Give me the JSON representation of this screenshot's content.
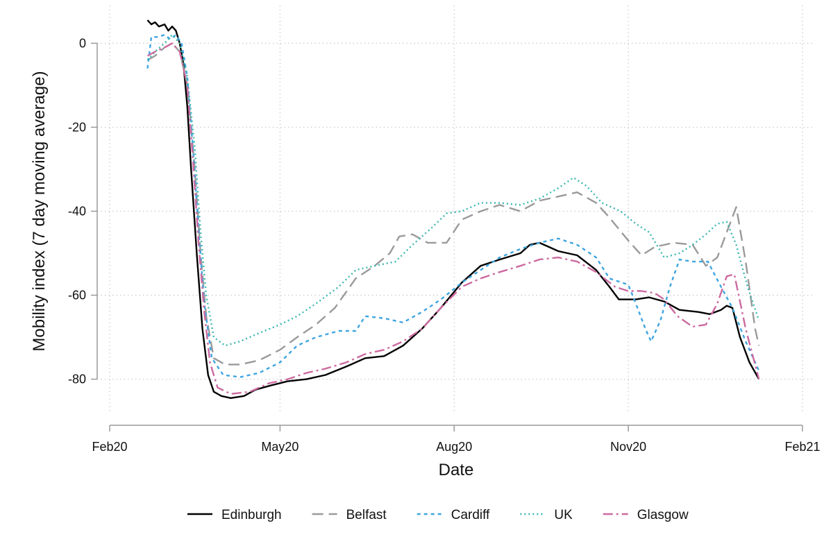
{
  "chart_data": {
    "type": "line",
    "title": "",
    "xlabel": "Date",
    "ylabel": "Mobility index (7 day moving average)",
    "x_ticks": [
      {
        "date": "2020-02-01",
        "label": "Feb20"
      },
      {
        "date": "2020-05-01",
        "label": "May20"
      },
      {
        "date": "2020-08-01",
        "label": "Aug20"
      },
      {
        "date": "2020-11-01",
        "label": "Nov20"
      },
      {
        "date": "2021-02-01",
        "label": "Feb21"
      }
    ],
    "xlim": [
      "2020-02-01",
      "2021-02-01"
    ],
    "y_ticks": [
      0,
      -20,
      -40,
      -60,
      -80
    ],
    "ylim": [
      -88,
      7
    ],
    "grid": "dotted",
    "legend_position": "bottom",
    "series": [
      {
        "name": "Edinburgh",
        "color": "#000000",
        "dash": "solid",
        "points": [
          [
            "2020-02-21",
            5.5
          ],
          [
            "2020-02-23",
            4.5
          ],
          [
            "2020-02-25",
            5
          ],
          [
            "2020-02-27",
            4
          ],
          [
            "2020-03-01",
            4.5
          ],
          [
            "2020-03-03",
            3
          ],
          [
            "2020-03-05",
            4
          ],
          [
            "2020-03-07",
            3
          ],
          [
            "2020-03-09",
            0
          ],
          [
            "2020-03-11",
            -5
          ],
          [
            "2020-03-13",
            -15
          ],
          [
            "2020-03-15",
            -30
          ],
          [
            "2020-03-18",
            -50
          ],
          [
            "2020-03-21",
            -68
          ],
          [
            "2020-03-24",
            -79
          ],
          [
            "2020-03-27",
            -83
          ],
          [
            "2020-03-31",
            -84
          ],
          [
            "2020-04-05",
            -84.5
          ],
          [
            "2020-04-12",
            -84
          ],
          [
            "2020-04-18",
            -82.5
          ],
          [
            "2020-04-26",
            -81.5
          ],
          [
            "2020-05-05",
            -80.5
          ],
          [
            "2020-05-15",
            -80
          ],
          [
            "2020-05-25",
            -79
          ],
          [
            "2020-06-05",
            -77
          ],
          [
            "2020-06-15",
            -75
          ],
          [
            "2020-06-25",
            -74.5
          ],
          [
            "2020-07-05",
            -72
          ],
          [
            "2020-07-15",
            -68
          ],
          [
            "2020-07-25",
            -63
          ],
          [
            "2020-08-05",
            -57
          ],
          [
            "2020-08-15",
            -53
          ],
          [
            "2020-08-25",
            -51.5
          ],
          [
            "2020-09-05",
            -50
          ],
          [
            "2020-09-10",
            -48
          ],
          [
            "2020-09-15",
            -47.5
          ],
          [
            "2020-09-20",
            -48.5
          ],
          [
            "2020-09-25",
            -49.5
          ],
          [
            "2020-10-05",
            -50.5
          ],
          [
            "2020-10-15",
            -54
          ],
          [
            "2020-10-22",
            -58
          ],
          [
            "2020-10-27",
            -61
          ],
          [
            "2020-11-05",
            -61
          ],
          [
            "2020-11-12",
            -60.5
          ],
          [
            "2020-11-20",
            -61.5
          ],
          [
            "2020-11-28",
            -63.5
          ],
          [
            "2020-12-08",
            -64
          ],
          [
            "2020-12-14",
            -64.5
          ],
          [
            "2020-12-20",
            -63.5
          ],
          [
            "2020-12-23",
            -62.5
          ],
          [
            "2020-12-26",
            -63
          ],
          [
            "2020-12-30",
            -70
          ],
          [
            "2021-01-04",
            -76
          ],
          [
            "2021-01-09",
            -80
          ]
        ]
      },
      {
        "name": "Belfast",
        "color": "#9a9a9a",
        "dash": "16 8",
        "points": [
          [
            "2020-02-21",
            -4
          ],
          [
            "2020-02-25",
            -3
          ],
          [
            "2020-03-01",
            -1
          ],
          [
            "2020-03-05",
            0
          ],
          [
            "2020-03-09",
            -2
          ],
          [
            "2020-03-13",
            -10
          ],
          [
            "2020-03-17",
            -30
          ],
          [
            "2020-03-20",
            -50
          ],
          [
            "2020-03-23",
            -65
          ],
          [
            "2020-03-27",
            -75
          ],
          [
            "2020-04-02",
            -76.5
          ],
          [
            "2020-04-10",
            -76.5
          ],
          [
            "2020-04-20",
            -75.5
          ],
          [
            "2020-05-01",
            -73
          ],
          [
            "2020-05-10",
            -70
          ],
          [
            "2020-05-20",
            -67
          ],
          [
            "2020-05-30",
            -63
          ],
          [
            "2020-06-10",
            -56
          ],
          [
            "2020-06-20",
            -53
          ],
          [
            "2020-06-28",
            -50
          ],
          [
            "2020-07-03",
            -46
          ],
          [
            "2020-07-10",
            -45.5
          ],
          [
            "2020-07-18",
            -47.5
          ],
          [
            "2020-07-28",
            -47.5
          ],
          [
            "2020-08-05",
            -42
          ],
          [
            "2020-08-15",
            -40
          ],
          [
            "2020-08-25",
            -38.5
          ],
          [
            "2020-09-05",
            -40
          ],
          [
            "2020-09-15",
            -37.5
          ],
          [
            "2020-09-25",
            -36.5
          ],
          [
            "2020-10-05",
            -35.5
          ],
          [
            "2020-10-15",
            -38
          ],
          [
            "2020-10-22",
            -41.5
          ],
          [
            "2020-11-01",
            -47
          ],
          [
            "2020-11-08",
            -50.5
          ],
          [
            "2020-11-15",
            -48.5
          ],
          [
            "2020-11-25",
            -47.5
          ],
          [
            "2020-12-05",
            -48
          ],
          [
            "2020-12-12",
            -53
          ],
          [
            "2020-12-18",
            -51
          ],
          [
            "2020-12-23",
            -45
          ],
          [
            "2020-12-28",
            -39
          ],
          [
            "2021-01-02",
            -52
          ],
          [
            "2021-01-07",
            -68
          ],
          [
            "2021-01-09",
            -72
          ]
        ]
      },
      {
        "name": "Cardiff",
        "color": "#3ea5e0",
        "dash": "5 5",
        "points": [
          [
            "2020-02-21",
            -6
          ],
          [
            "2020-02-23",
            1.5
          ],
          [
            "2020-02-26",
            1.5
          ],
          [
            "2020-03-01",
            2
          ],
          [
            "2020-03-04",
            1
          ],
          [
            "2020-03-07",
            2
          ],
          [
            "2020-03-10",
            0
          ],
          [
            "2020-03-13",
            -8
          ],
          [
            "2020-03-16",
            -25
          ],
          [
            "2020-03-19",
            -45
          ],
          [
            "2020-03-22",
            -62
          ],
          [
            "2020-03-26",
            -75
          ],
          [
            "2020-04-01",
            -79
          ],
          [
            "2020-04-10",
            -79.5
          ],
          [
            "2020-04-20",
            -78.5
          ],
          [
            "2020-05-01",
            -76
          ],
          [
            "2020-05-10",
            -72
          ],
          [
            "2020-05-20",
            -70
          ],
          [
            "2020-06-01",
            -68.5
          ],
          [
            "2020-06-10",
            -68.5
          ],
          [
            "2020-06-15",
            -65
          ],
          [
            "2020-06-25",
            -65.5
          ],
          [
            "2020-07-05",
            -66.5
          ],
          [
            "2020-07-15",
            -64
          ],
          [
            "2020-07-25",
            -61
          ],
          [
            "2020-08-05",
            -57
          ],
          [
            "2020-08-15",
            -54
          ],
          [
            "2020-08-25",
            -51
          ],
          [
            "2020-09-05",
            -49
          ],
          [
            "2020-09-15",
            -47.5
          ],
          [
            "2020-09-25",
            -46.5
          ],
          [
            "2020-10-05",
            -48
          ],
          [
            "2020-10-15",
            -51
          ],
          [
            "2020-10-22",
            -56
          ],
          [
            "2020-11-01",
            -57.5
          ],
          [
            "2020-11-05",
            -62
          ],
          [
            "2020-11-10",
            -68
          ],
          [
            "2020-11-13",
            -71
          ],
          [
            "2020-11-18",
            -66
          ],
          [
            "2020-11-23",
            -58
          ],
          [
            "2020-11-28",
            -51.5
          ],
          [
            "2020-12-05",
            -52
          ],
          [
            "2020-12-13",
            -52
          ],
          [
            "2020-12-20",
            -58
          ],
          [
            "2020-12-26",
            -63
          ],
          [
            "2021-01-02",
            -71
          ],
          [
            "2021-01-09",
            -78
          ]
        ]
      },
      {
        "name": "UK",
        "color": "#3ab7b0",
        "dash": "2 4",
        "points": [
          [
            "2020-02-21",
            -4
          ],
          [
            "2020-02-25",
            -2
          ],
          [
            "2020-03-01",
            0
          ],
          [
            "2020-03-05",
            2
          ],
          [
            "2020-03-09",
            0
          ],
          [
            "2020-03-13",
            -8
          ],
          [
            "2020-03-17",
            -25
          ],
          [
            "2020-03-20",
            -45
          ],
          [
            "2020-03-23",
            -60
          ],
          [
            "2020-03-27",
            -70
          ],
          [
            "2020-04-02",
            -72
          ],
          [
            "2020-04-10",
            -71
          ],
          [
            "2020-04-20",
            -69
          ],
          [
            "2020-05-01",
            -67
          ],
          [
            "2020-05-10",
            -65
          ],
          [
            "2020-05-20",
            -62
          ],
          [
            "2020-06-01",
            -58
          ],
          [
            "2020-06-10",
            -54
          ],
          [
            "2020-06-20",
            -53
          ],
          [
            "2020-07-01",
            -52
          ],
          [
            "2020-07-10",
            -48
          ],
          [
            "2020-07-20",
            -44
          ],
          [
            "2020-07-28",
            -40.5
          ],
          [
            "2020-08-05",
            -40
          ],
          [
            "2020-08-15",
            -38
          ],
          [
            "2020-08-25",
            -38
          ],
          [
            "2020-09-05",
            -38.5
          ],
          [
            "2020-09-15",
            -37
          ],
          [
            "2020-09-25",
            -34.5
          ],
          [
            "2020-10-03",
            -32
          ],
          [
            "2020-10-10",
            -34
          ],
          [
            "2020-10-18",
            -38
          ],
          [
            "2020-10-28",
            -40
          ],
          [
            "2020-11-05",
            -43
          ],
          [
            "2020-11-12",
            -45
          ],
          [
            "2020-11-20",
            -51
          ],
          [
            "2020-11-28",
            -50
          ],
          [
            "2020-12-05",
            -48
          ],
          [
            "2020-12-12",
            -45.5
          ],
          [
            "2020-12-18",
            -43
          ],
          [
            "2020-12-23",
            -42.5
          ],
          [
            "2020-12-28",
            -48
          ],
          [
            "2021-01-03",
            -58
          ],
          [
            "2021-01-09",
            -66
          ]
        ]
      },
      {
        "name": "Glasgow",
        "color": "#cc6aa0",
        "dash": "14 5 3 5",
        "points": [
          [
            "2020-02-21",
            -3
          ],
          [
            "2020-02-25",
            -2
          ],
          [
            "2020-03-01",
            -1
          ],
          [
            "2020-03-05",
            0
          ],
          [
            "2020-03-09",
            -2
          ],
          [
            "2020-03-13",
            -10
          ],
          [
            "2020-03-16",
            -28
          ],
          [
            "2020-03-19",
            -48
          ],
          [
            "2020-03-22",
            -64
          ],
          [
            "2020-03-25",
            -76
          ],
          [
            "2020-03-29",
            -82
          ],
          [
            "2020-04-05",
            -83.5
          ],
          [
            "2020-04-15",
            -83
          ],
          [
            "2020-04-25",
            -81
          ],
          [
            "2020-05-05",
            -80
          ],
          [
            "2020-05-15",
            -78.5
          ],
          [
            "2020-05-25",
            -77.5
          ],
          [
            "2020-06-05",
            -76
          ],
          [
            "2020-06-15",
            -74
          ],
          [
            "2020-06-25",
            -73
          ],
          [
            "2020-07-05",
            -71
          ],
          [
            "2020-07-15",
            -68
          ],
          [
            "2020-07-25",
            -63
          ],
          [
            "2020-08-05",
            -58
          ],
          [
            "2020-08-15",
            -56
          ],
          [
            "2020-08-25",
            -54.5
          ],
          [
            "2020-09-05",
            -53
          ],
          [
            "2020-09-15",
            -51.5
          ],
          [
            "2020-09-25",
            -51
          ],
          [
            "2020-10-05",
            -52
          ],
          [
            "2020-10-15",
            -54.5
          ],
          [
            "2020-10-25",
            -58
          ],
          [
            "2020-11-01",
            -59
          ],
          [
            "2020-11-08",
            -59
          ],
          [
            "2020-11-15",
            -59.5
          ],
          [
            "2020-11-20",
            -61
          ],
          [
            "2020-11-27",
            -65
          ],
          [
            "2020-12-05",
            -67.5
          ],
          [
            "2020-12-12",
            -67
          ],
          [
            "2020-12-18",
            -62
          ],
          [
            "2020-12-23",
            -55.5
          ],
          [
            "2020-12-27",
            -55
          ],
          [
            "2021-01-02",
            -68
          ],
          [
            "2021-01-09",
            -80
          ]
        ]
      }
    ]
  }
}
